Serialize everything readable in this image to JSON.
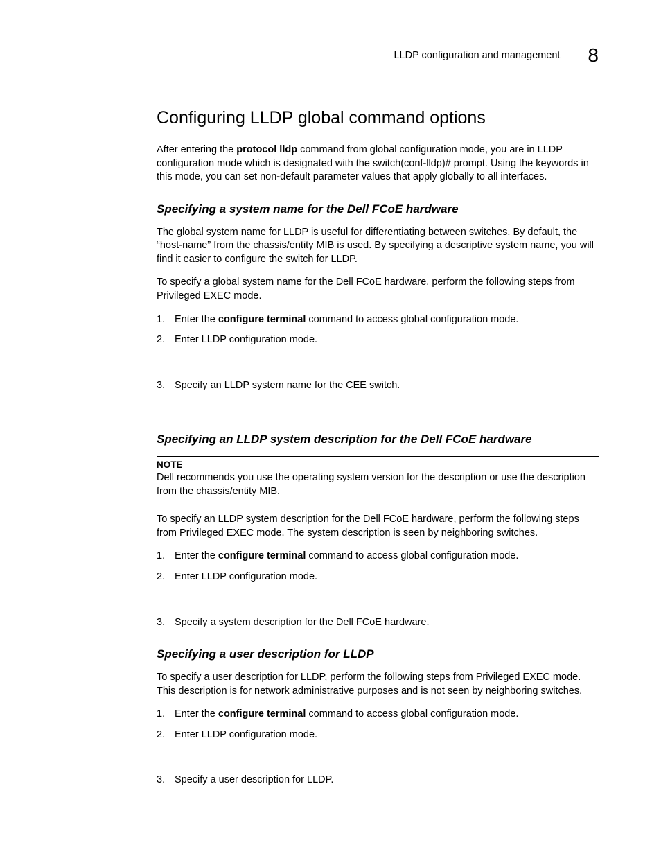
{
  "header": {
    "breadcrumb": "LLDP configuration and management",
    "chapter_number": "8"
  },
  "title": "Configuring LLDP global command options",
  "intro": {
    "pre": "After entering the ",
    "bold": "protocol lldp",
    "post": " command from global configuration mode, you are in LLDP configuration mode which is designated with the switch(conf-lldp)# prompt. Using the keywords in this mode, you can set non-default parameter values that apply globally to all interfaces."
  },
  "sections": [
    {
      "heading": "Specifying a system name for the Dell FCoE hardware",
      "paras": [
        "The global system name for LLDP is useful for differentiating between switches. By default, the “host-name” from the chassis/entity MIB is used. By specifying a descriptive system name, you will find it easier to configure the switch for LLDP.",
        "To specify a global system name for the Dell FCoE hardware, perform the following steps from Privileged EXEC mode."
      ],
      "steps": [
        {
          "pre": "Enter the ",
          "bold": "configure terminal",
          "post": " command to access global configuration mode."
        },
        {
          "pre": "Enter LLDP configuration mode.",
          "bold": "",
          "post": "",
          "gap_after": true
        },
        {
          "pre": "Specify an LLDP system name for the CEE switch.",
          "bold": "",
          "post": ""
        }
      ]
    },
    {
      "heading": "Specifying an LLDP system description for the Dell FCoE hardware",
      "note": {
        "label": "NOTE",
        "text": "Dell recommends you use the operating system version for the description or use the description from the chassis/entity MIB."
      },
      "paras": [
        "To specify an LLDP system description for the Dell FCoE hardware, perform the following steps from Privileged EXEC mode. The system description is seen by neighboring switches."
      ],
      "steps": [
        {
          "pre": "Enter the ",
          "bold": "configure terminal",
          "post": " command to access global configuration mode."
        },
        {
          "pre": "Enter LLDP configuration mode.",
          "bold": "",
          "post": "",
          "gap_after": true
        },
        {
          "pre": "Specify a system description for the Dell FCoE hardware.",
          "bold": "",
          "post": ""
        }
      ]
    },
    {
      "heading": "Specifying a user description for LLDP",
      "paras": [
        "To specify a user description for LLDP, perform the following steps from Privileged EXEC mode. This description is for network administrative purposes and is not seen by neighboring switches."
      ],
      "steps": [
        {
          "pre": "Enter the ",
          "bold": "configure terminal",
          "post": " command to access global configuration mode."
        },
        {
          "pre": "Enter LLDP configuration mode.",
          "bold": "",
          "post": "",
          "gap_after": true
        },
        {
          "pre": "Specify a user description for LLDP.",
          "bold": "",
          "post": ""
        }
      ]
    }
  ]
}
